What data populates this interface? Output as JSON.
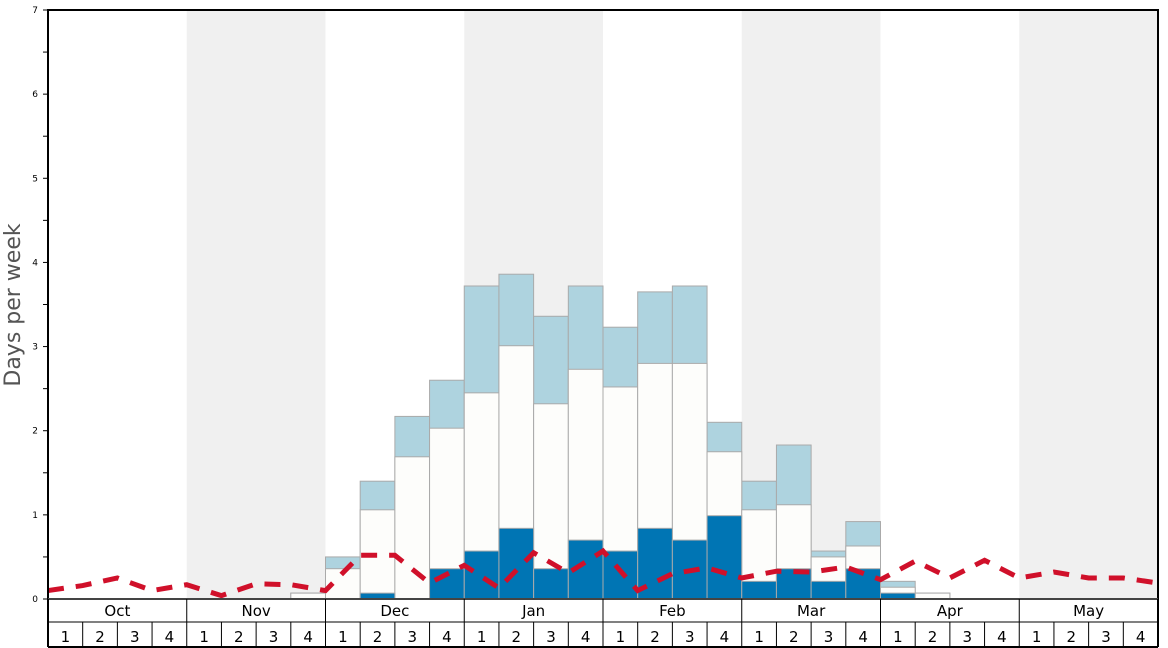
{
  "chart_data": {
    "type": "bar",
    "subtype": "stacked-bar-with-line",
    "ylabel": "Days per week",
    "xlabel": "",
    "ylim": [
      0,
      7
    ],
    "yticks": [
      "0",
      "1",
      "2",
      "3",
      "4",
      "5",
      "6",
      "7"
    ],
    "months": [
      "Oct",
      "Nov",
      "Dec",
      "Jan",
      "Feb",
      "Mar",
      "Apr",
      "May"
    ],
    "weeks_per_month": [
      "1",
      "2",
      "3",
      "4"
    ],
    "shaded_months": [
      "Nov",
      "Jan",
      "Mar",
      "May"
    ],
    "series": [
      {
        "name": "dark",
        "color": "#0075b4",
        "values": [
          0,
          0,
          0,
          0,
          0,
          0,
          0,
          0,
          0,
          0.07,
          0,
          0.36,
          0.57,
          0.84,
          0.36,
          0.7,
          0.57,
          0.84,
          0.7,
          0.99,
          0.21,
          0.36,
          0.21,
          0.36,
          0.07,
          0,
          0,
          0,
          0,
          0,
          0,
          0
        ]
      },
      {
        "name": "white",
        "color": "#fdfdfb",
        "values": [
          0,
          0,
          0,
          0,
          0,
          0,
          0,
          0.07,
          0.36,
          1.06,
          1.69,
          2.03,
          2.45,
          3.01,
          2.32,
          2.73,
          2.52,
          2.8,
          2.8,
          1.75,
          1.06,
          1.12,
          0.5,
          0.63,
          0.14,
          0.07,
          0,
          0,
          0,
          0,
          0,
          0
        ]
      },
      {
        "name": "light",
        "color": "#aed3df",
        "values": [
          0,
          0,
          0,
          0,
          0,
          0,
          0,
          0.07,
          0.5,
          1.4,
          2.17,
          2.6,
          3.72,
          3.86,
          3.36,
          3.72,
          3.23,
          3.65,
          3.72,
          2.1,
          1.4,
          1.83,
          0.57,
          0.92,
          0.21,
          0.07,
          0,
          0,
          0,
          0,
          0,
          0
        ]
      }
    ],
    "line": {
      "name": "dashed",
      "color": "#d0102a",
      "values": [
        0.1,
        0.16,
        0.25,
        0.1,
        0.17,
        0.04,
        0.18,
        0.17,
        0.1,
        0.52,
        0.52,
        0.19,
        0.4,
        0.13,
        0.55,
        0.31,
        0.57,
        0.1,
        0.3,
        0.37,
        0.25,
        0.33,
        0.32,
        0.38,
        0.23,
        0.45,
        0.25,
        0.46,
        0.25,
        0.32,
        0.25,
        0.25,
        0.19
      ]
    }
  }
}
